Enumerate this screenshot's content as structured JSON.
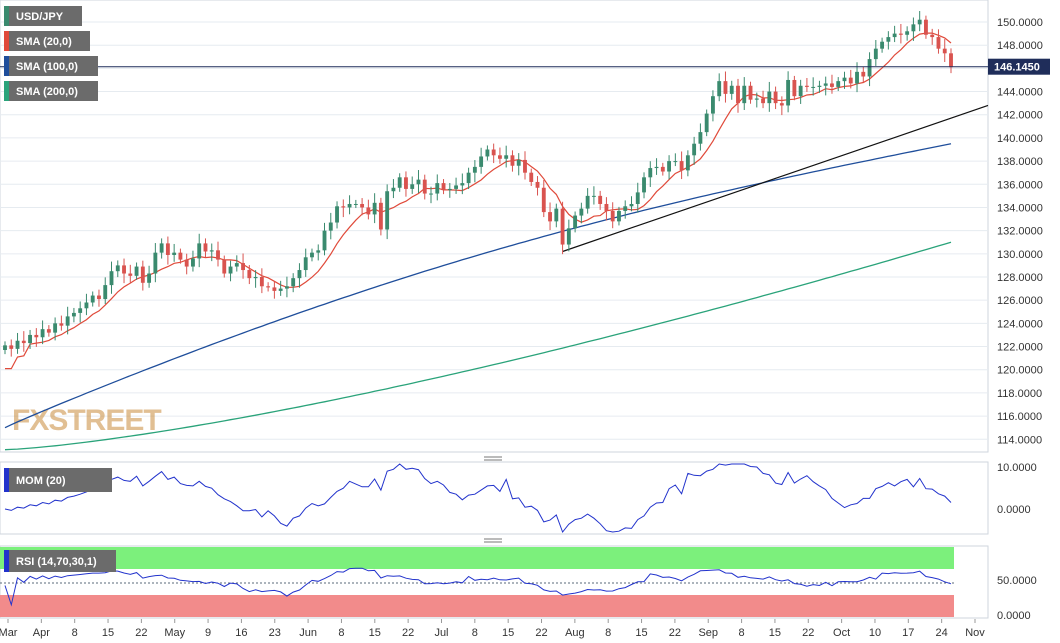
{
  "chart_data": {
    "type": "candlestick",
    "symbol": "USD/JPY",
    "watermark": "FXSTREET",
    "last_price_label": "146.1450",
    "y_ticks": [
      "150.0000",
      "148.0000",
      "146.0000",
      "144.0000",
      "142.0000",
      "140.0000",
      "138.0000",
      "136.0000",
      "134.0000",
      "132.0000",
      "130.0000",
      "128.0000",
      "126.0000",
      "124.0000",
      "122.0000",
      "120.0000",
      "118.0000",
      "116.0000",
      "114.0000"
    ],
    "ylim": [
      112.9,
      151.9
    ],
    "x_labels": [
      "Mar",
      "Apr",
      "8",
      "15",
      "22",
      "May",
      "9",
      "16",
      "23",
      "Jun",
      "8",
      "15",
      "22",
      "Jul",
      "8",
      "15",
      "22",
      "Aug",
      "8",
      "15",
      "22",
      "Sep",
      "8",
      "15",
      "22",
      "Oct",
      "10",
      "17",
      "24",
      "Nov"
    ],
    "legend": [
      "USD/JPY",
      "SMA (20,0)",
      "SMA (100,0)",
      "SMA (200,0)"
    ],
    "colors": {
      "up": "#3a8a6e",
      "down": "#d9534f",
      "sma20": "#e04a3a",
      "sma100": "#1f4e9b",
      "sma200": "#2aa37a",
      "price_line": "#1f2d5a",
      "mom": "#2233cc",
      "rsi": "#2233cc",
      "rsi_high": "#7cf07c",
      "rsi_low": "#f28b8b"
    },
    "closes": [
      122.1,
      121.8,
      122.5,
      122.3,
      123.0,
      122.8,
      123.5,
      123.2,
      124.0,
      123.8,
      124.6,
      124.9,
      125.3,
      125.8,
      126.4,
      126.1,
      127.3,
      128.5,
      129.0,
      128.3,
      128.1,
      128.9,
      127.5,
      128.3,
      130.1,
      130.9,
      129.9,
      130.1,
      129.5,
      128.9,
      129.6,
      130.9,
      130.2,
      130.3,
      129.5,
      128.3,
      128.9,
      129.2,
      128.6,
      127.9,
      128.0,
      127.2,
      127.1,
      126.8,
      127.0,
      127.2,
      127.9,
      128.6,
      129.7,
      130.1,
      130.3,
      132.0,
      132.7,
      134.1,
      134.0,
      134.3,
      134.3,
      134.0,
      133.4,
      134.4,
      132.1,
      135.4,
      135.7,
      136.6,
      135.6,
      136.0,
      136.4,
      135.2,
      135.2,
      136.1,
      135.5,
      135.6,
      135.9,
      136.1,
      137.0,
      137.5,
      138.4,
      139.0,
      138.5,
      138.2,
      138.5,
      137.6,
      138.1,
      137.0,
      136.2,
      135.7,
      133.6,
      132.8,
      133.9,
      130.8,
      132.2,
      133.3,
      133.9,
      135.0,
      135.0,
      134.3,
      133.7,
      132.8,
      133.7,
      134.1,
      134.3,
      135.3,
      136.6,
      137.4,
      137.5,
      137.1,
      138.0,
      138.0,
      137.2,
      138.5,
      139.5,
      140.5,
      142.1,
      143.6,
      144.9,
      143.8,
      144.5,
      143.0,
      144.5,
      143.3,
      143.4,
      143.0,
      144.0,
      143.0,
      142.8,
      145.0,
      143.6,
      144.5,
      144.4,
      144.4,
      144.5,
      144.7,
      144.4,
      144.9,
      145.2,
      144.7,
      145.7,
      145.3,
      146.8,
      147.7,
      148.3,
      148.7,
      149.0,
      148.9,
      149.2,
      149.8,
      150.2,
      148.9,
      148.7,
      147.7,
      147.3,
      146.1
    ],
    "momentum_scale": [
      "10.0000",
      "0.0000"
    ],
    "momentum_label": "MOM (20)",
    "rsi_scale": [
      "50.0000",
      "0.0000"
    ],
    "rsi_label": "RSI (14,70,30,1)"
  }
}
